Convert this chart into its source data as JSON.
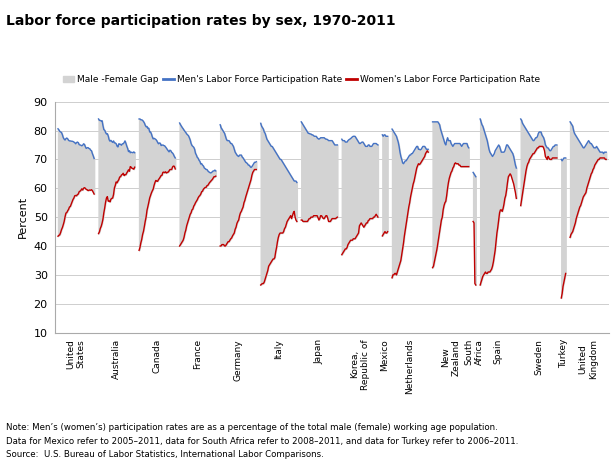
{
  "title": "Labor force participation rates by sex, 1970-2011",
  "ylabel": "Percent",
  "ylim": [
    10,
    90
  ],
  "yticks": [
    10,
    20,
    30,
    40,
    50,
    60,
    70,
    80,
    90
  ],
  "background_color": "#ffffff",
  "gap_color": "#d3d3d3",
  "men_color": "#4472c4",
  "women_color": "#c00000",
  "note_line1": "Note: Men’s (women’s) participation rates are as a percentage of the total male (female) working age population.",
  "note_line2": "Data for Mexico refer to 2005–2011, data for South Africa refer to 2008–2011, and data for Turkey refer to 2006–2011.",
  "note_line3": "Source:  U.S. Bureau of Labor Statistics, International Labor Comparisons.",
  "countries": [
    {
      "name": "United\nStates",
      "men": [
        80.6,
        80.2,
        79.7,
        79.5,
        79.3,
        78.5,
        77.5,
        77.0,
        76.7,
        77.2,
        77.4,
        77.1,
        76.6,
        76.4,
        76.4,
        76.3,
        76.3,
        76.2,
        76.0,
        75.8,
        75.4,
        75.8,
        76.0,
        75.8,
        75.1,
        75.0,
        74.9,
        74.7,
        74.9,
        75.4,
        75.2,
        74.4,
        73.8,
        74.0,
        74.1,
        73.8,
        73.7,
        73.2,
        73.0,
        72.0,
        71.2,
        70.3
      ],
      "women": [
        43.4,
        43.7,
        43.9,
        44.7,
        45.7,
        46.4,
        47.4,
        48.5,
        50.1,
        51.4,
        51.6,
        52.2,
        52.7,
        53.5,
        53.7,
        54.5,
        55.3,
        56.1,
        56.6,
        57.4,
        57.5,
        57.4,
        57.8,
        58.0,
        58.8,
        59.0,
        59.3,
        59.8,
        59.4,
        60.0,
        60.2,
        60.0,
        59.6,
        59.5,
        59.2,
        59.3,
        59.4,
        59.3,
        59.5,
        59.2,
        58.6,
        58.0
      ]
    },
    {
      "name": "Australia",
      "men": [
        84.0,
        83.5,
        83.5,
        83.3,
        83.4,
        81.7,
        80.3,
        80.1,
        79.3,
        78.8,
        78.9,
        78.1,
        76.8,
        76.3,
        76.6,
        76.2,
        75.9,
        76.4,
        75.7,
        75.7,
        75.4,
        74.6,
        74.3,
        75.4,
        75.3,
        75.2,
        74.9,
        75.4,
        75.4,
        75.8,
        76.4,
        75.6,
        74.6,
        73.8,
        72.7,
        73.0,
        72.3,
        72.5,
        72.4,
        72.3,
        72.6,
        72.3
      ],
      "women": [
        44.3,
        44.9,
        46.1,
        46.8,
        47.9,
        49.3,
        51.5,
        53.2,
        55.2,
        56.6,
        57.1,
        55.5,
        55.6,
        55.3,
        56.2,
        56.5,
        56.6,
        57.8,
        60.1,
        61.0,
        62.2,
        61.9,
        62.5,
        63.0,
        63.9,
        64.0,
        64.6,
        64.8,
        65.2,
        64.4,
        64.7,
        64.7,
        65.3,
        65.8,
        66.4,
        65.9,
        67.5,
        67.3,
        66.9,
        66.8,
        66.6,
        67.3
      ]
    },
    {
      "name": "Canada",
      "men": [
        84.0,
        84.0,
        83.7,
        83.7,
        83.5,
        83.1,
        82.6,
        81.8,
        81.3,
        81.4,
        80.7,
        80.8,
        79.5,
        79.5,
        78.8,
        77.8,
        77.1,
        77.3,
        77.1,
        76.9,
        76.5,
        75.9,
        75.4,
        75.7,
        75.6,
        74.8,
        74.9,
        75.0,
        74.8,
        74.7,
        74.3,
        73.9,
        73.4,
        73.0,
        72.6,
        73.2,
        73.0,
        72.4,
        72.2,
        71.7,
        71.0,
        70.5
      ],
      "women": [
        38.5,
        39.5,
        41.1,
        42.3,
        44.0,
        45.1,
        46.8,
        48.6,
        50.1,
        52.4,
        53.7,
        55.1,
        56.6,
        57.5,
        58.4,
        59.1,
        59.7,
        61.0,
        62.0,
        62.7,
        62.5,
        62.4,
        63.0,
        63.4,
        63.9,
        64.4,
        64.5,
        65.5,
        65.6,
        65.4,
        65.7,
        65.3,
        65.5,
        65.6,
        66.0,
        66.5,
        66.5,
        66.5,
        67.4,
        67.7,
        67.6,
        66.7
      ]
    },
    {
      "name": "France",
      "men": [
        82.6,
        82.0,
        81.5,
        81.0,
        80.6,
        80.1,
        79.7,
        79.3,
        78.8,
        78.5,
        78.2,
        77.5,
        76.7,
        75.5,
        74.8,
        74.5,
        74.2,
        73.5,
        72.1,
        71.5,
        70.7,
        70.4,
        69.7,
        69.3,
        68.4,
        68.5,
        68.0,
        67.7,
        67.0,
        66.8,
        66.5,
        66.5,
        66.0,
        65.7,
        65.5,
        65.3,
        65.4,
        65.7,
        66.0,
        66.0,
        66.3,
        66.0
      ],
      "women": [
        40.0,
        40.5,
        41.0,
        41.5,
        42.0,
        43.0,
        44.5,
        45.5,
        47.0,
        48.0,
        49.0,
        50.0,
        51.0,
        51.5,
        52.5,
        52.8,
        53.8,
        54.3,
        55.0,
        55.5,
        56.0,
        56.7,
        57.2,
        57.5,
        58.0,
        58.8,
        59.0,
        59.7,
        60.0,
        60.3,
        60.3,
        60.9,
        61.0,
        61.5,
        62.0,
        62.3,
        62.7,
        63.0,
        63.5,
        64.0,
        64.0,
        64.2
      ]
    },
    {
      "name": "Germany",
      "men": [
        82.0,
        81.0,
        80.5,
        80.0,
        79.5,
        79.0,
        78.0,
        77.0,
        76.5,
        76.5,
        76.5,
        76.0,
        75.5,
        75.5,
        75.0,
        74.5,
        73.5,
        72.5,
        72.0,
        71.5,
        71.2,
        71.0,
        71.5,
        71.5,
        71.5,
        70.8,
        70.5,
        70.0,
        69.5,
        69.0,
        68.8,
        68.5,
        68.0,
        68.0,
        67.5,
        67.2,
        67.5,
        68.0,
        68.5,
        69.0,
        69.0,
        69.2
      ],
      "women": [
        40.0,
        40.0,
        40.5,
        40.5,
        40.5,
        40.0,
        40.0,
        40.5,
        41.0,
        41.5,
        41.5,
        42.0,
        42.5,
        42.8,
        43.5,
        44.0,
        44.5,
        45.8,
        46.5,
        47.8,
        48.5,
        49.0,
        50.5,
        51.5,
        52.0,
        52.8,
        53.5,
        55.0,
        55.8,
        57.0,
        58.0,
        59.0,
        60.0,
        61.0,
        62.0,
        63.0,
        64.5,
        65.5,
        66.0,
        66.5,
        66.5,
        66.5
      ]
    },
    {
      "name": "Italy",
      "men": [
        82.5,
        81.5,
        81.0,
        80.5,
        79.5,
        79.0,
        78.0,
        77.0,
        76.5,
        76.0,
        75.5,
        75.0,
        74.5,
        74.5,
        74.0,
        73.5,
        73.0,
        72.5,
        72.0,
        71.5,
        71.0,
        70.5,
        70.0,
        70.0,
        69.5,
        69.0,
        68.5,
        68.0,
        67.5,
        67.0,
        66.5,
        66.0,
        65.5,
        65.0,
        64.5,
        64.0,
        63.5,
        63.0,
        62.5,
        62.5,
        62.5,
        62.0
      ],
      "women": [
        26.5,
        26.8,
        27.0,
        27.0,
        27.5,
        28.5,
        29.5,
        30.5,
        31.5,
        33.0,
        33.5,
        34.0,
        34.5,
        35.0,
        35.5,
        35.5,
        36.0,
        38.0,
        39.5,
        41.5,
        43.0,
        44.0,
        44.5,
        44.5,
        44.5,
        44.5,
        45.0,
        46.0,
        46.5,
        47.5,
        48.5,
        49.0,
        49.5,
        50.0,
        50.5,
        49.5,
        50.5,
        51.5,
        52.0,
        50.0,
        49.0,
        48.5
      ]
    },
    {
      "name": "Japan",
      "men": [
        83.0,
        82.5,
        82.0,
        81.5,
        81.0,
        80.5,
        80.0,
        79.5,
        79.0,
        79.0,
        78.8,
        78.8,
        78.5,
        78.5,
        78.2,
        78.0,
        78.0,
        78.0,
        77.5,
        77.2,
        77.0,
        77.2,
        77.5,
        77.5,
        77.5,
        77.5,
        77.5,
        77.2,
        77.0,
        77.0,
        76.8,
        76.5,
        76.5,
        76.5,
        76.5,
        76.5,
        76.0,
        75.5,
        75.0,
        75.0,
        75.0,
        75.0
      ],
      "women": [
        49.0,
        49.0,
        48.5,
        48.5,
        48.5,
        48.5,
        48.5,
        48.5,
        49.0,
        49.5,
        49.5,
        50.0,
        50.0,
        50.0,
        50.5,
        50.5,
        50.5,
        50.5,
        50.5,
        49.8,
        49.0,
        49.5,
        50.5,
        50.5,
        50.0,
        49.5,
        49.5,
        50.0,
        50.5,
        50.5,
        49.7,
        48.5,
        48.5,
        48.5,
        49.0,
        49.5,
        49.5,
        49.5,
        49.5,
        49.5,
        49.8,
        50.0
      ]
    },
    {
      "name": "Korea,\nRepublic of",
      "men": [
        77.0,
        76.5,
        76.5,
        76.5,
        76.0,
        76.0,
        76.0,
        76.5,
        76.8,
        77.0,
        77.2,
        77.5,
        77.8,
        78.0,
        78.0,
        78.0,
        77.5,
        77.0,
        76.5,
        76.0,
        75.5,
        75.5,
        75.8,
        76.0,
        76.0,
        75.5,
        75.0,
        74.5,
        74.5,
        74.5,
        75.0,
        75.0,
        74.5,
        74.5,
        74.5,
        75.0,
        75.5,
        75.5,
        75.5,
        75.5,
        75.2,
        75.0
      ],
      "women": [
        37.0,
        37.5,
        38.0,
        38.5,
        39.0,
        39.0,
        39.5,
        40.5,
        41.0,
        41.5,
        42.0,
        42.0,
        42.0,
        42.5,
        42.5,
        42.5,
        43.0,
        43.5,
        44.0,
        44.5,
        47.0,
        47.5,
        48.0,
        47.5,
        47.0,
        46.5,
        47.0,
        47.5,
        48.0,
        48.0,
        48.8,
        49.0,
        49.5,
        49.5,
        49.5,
        49.5,
        50.0,
        50.0,
        50.5,
        51.0,
        50.5,
        50.0
      ]
    },
    {
      "name": "Mexico",
      "men": [
        78.5,
        78.0,
        78.5,
        78.5,
        78.0,
        78.0,
        78.0
      ],
      "women": [
        43.5,
        44.0,
        44.5,
        45.0,
        44.5,
        44.5,
        45.0
      ]
    },
    {
      "name": "Netherlands",
      "men": [
        80.5,
        80.0,
        79.5,
        79.0,
        78.5,
        78.0,
        77.0,
        76.0,
        74.5,
        72.5,
        71.0,
        70.0,
        68.8,
        68.5,
        69.0,
        69.5,
        69.5,
        70.0,
        70.5,
        71.0,
        71.5,
        71.5,
        72.0,
        72.0,
        72.5,
        73.0,
        73.5,
        74.0,
        74.5,
        74.5,
        73.5,
        73.5,
        73.3,
        73.5,
        74.0,
        74.5,
        74.5,
        74.5,
        74.0,
        73.5,
        73.5,
        73.5
      ],
      "women": [
        29.0,
        30.0,
        30.0,
        30.5,
        30.5,
        30.0,
        31.0,
        32.0,
        33.0,
        34.0,
        35.0,
        37.0,
        39.0,
        41.0,
        43.5,
        45.5,
        47.5,
        49.5,
        51.5,
        53.5,
        55.0,
        57.0,
        58.5,
        60.0,
        61.5,
        62.5,
        64.0,
        65.5,
        67.0,
        67.8,
        68.5,
        68.2,
        68.5,
        69.0,
        69.5,
        70.0,
        70.5,
        71.0,
        72.0,
        72.5,
        73.0,
        72.5
      ]
    },
    {
      "name": "New\nZealand",
      "men": [
        83.0,
        83.0,
        83.0,
        83.0,
        83.0,
        83.0,
        83.0,
        82.5,
        82.0,
        80.5,
        79.5,
        78.5,
        77.5,
        76.5,
        75.5,
        75.0,
        76.5,
        77.5,
        76.5,
        76.5,
        76.5,
        75.5,
        75.0,
        74.5,
        75.0,
        75.5,
        75.5,
        75.5,
        75.5,
        75.5,
        75.5,
        75.5,
        75.0,
        74.5,
        75.0,
        75.5,
        75.5,
        75.5,
        75.5,
        75.5,
        74.5,
        74.0
      ],
      "women": [
        32.5,
        33.0,
        34.5,
        36.0,
        37.5,
        39.0,
        41.0,
        43.0,
        45.0,
        47.0,
        49.0,
        50.0,
        52.5,
        54.0,
        55.0,
        55.5,
        57.5,
        60.0,
        62.0,
        63.5,
        64.5,
        65.5,
        66.0,
        67.0,
        67.5,
        68.5,
        68.8,
        68.5,
        68.5,
        68.5,
        68.0,
        68.0,
        67.5,
        67.5,
        67.5,
        67.5,
        67.5,
        67.5,
        67.5,
        67.5,
        67.5,
        67.5
      ]
    },
    {
      "name": "South\nAfrica",
      "men": [
        65.5,
        65.0,
        64.5,
        64.0
      ],
      "women": [
        48.5,
        48.0,
        27.0,
        26.5
      ]
    },
    {
      "name": "Spain",
      "men": [
        84.0,
        83.0,
        82.0,
        81.5,
        80.5,
        79.5,
        78.5,
        77.5,
        76.5,
        75.0,
        73.5,
        72.5,
        72.0,
        71.5,
        71.0,
        71.5,
        72.0,
        73.0,
        73.5,
        74.0,
        74.5,
        75.0,
        74.5,
        73.5,
        72.5,
        72.5,
        72.5,
        72.5,
        73.0,
        74.0,
        75.0,
        75.0,
        74.5,
        74.0,
        73.5,
        73.0,
        72.5,
        72.0,
        71.0,
        69.5,
        68.0,
        67.0
      ],
      "women": [
        26.5,
        27.5,
        28.5,
        29.5,
        30.0,
        30.5,
        31.0,
        30.5,
        30.5,
        31.0,
        31.0,
        31.0,
        31.5,
        32.0,
        33.0,
        34.5,
        36.5,
        38.5,
        41.5,
        44.5,
        46.5,
        49.0,
        51.5,
        52.5,
        52.5,
        52.0,
        53.0,
        54.5,
        56.5,
        57.5,
        59.5,
        62.0,
        64.0,
        64.5,
        65.0,
        64.5,
        63.5,
        62.5,
        61.5,
        60.0,
        58.5,
        56.5
      ]
    },
    {
      "name": "Sweden",
      "men": [
        84.0,
        83.5,
        82.5,
        82.0,
        81.5,
        81.0,
        80.5,
        80.0,
        79.5,
        79.0,
        78.5,
        78.0,
        77.5,
        77.0,
        76.5,
        76.5,
        77.0,
        77.5,
        77.5,
        78.0,
        79.0,
        79.5,
        79.5,
        79.5,
        78.5,
        78.0,
        77.5,
        76.5,
        75.0,
        74.5,
        74.0,
        74.0,
        73.5,
        73.0,
        73.0,
        73.5,
        74.0,
        74.5,
        74.5,
        75.0,
        75.0,
        75.0
      ],
      "women": [
        54.0,
        56.0,
        58.0,
        60.0,
        62.0,
        64.0,
        66.0,
        67.5,
        68.5,
        69.0,
        70.0,
        70.5,
        71.0,
        71.5,
        72.0,
        72.0,
        72.5,
        73.0,
        73.5,
        74.0,
        74.0,
        74.5,
        74.5,
        74.5,
        74.5,
        74.5,
        74.0,
        73.0,
        71.0,
        70.5,
        70.0,
        71.0,
        70.5,
        70.0,
        70.0,
        70.0,
        70.5,
        70.5,
        70.5,
        70.5,
        70.5,
        70.5
      ]
    },
    {
      "name": "Turkey",
      "men": [
        70.0,
        69.5,
        70.0,
        70.5,
        70.5,
        70.5
      ],
      "women": [
        22.0,
        23.5,
        26.0,
        27.5,
        29.0,
        30.5
      ]
    },
    {
      "name": "United\nKingdom",
      "men": [
        83.0,
        82.5,
        82.0,
        81.5,
        80.0,
        79.0,
        78.5,
        78.0,
        77.5,
        77.0,
        76.5,
        76.0,
        75.5,
        75.0,
        74.5,
        74.0,
        74.0,
        74.5,
        75.0,
        75.5,
        76.0,
        76.5,
        76.0,
        75.5,
        75.5,
        75.0,
        74.5,
        74.0,
        74.0,
        74.0,
        74.5,
        74.0,
        73.5,
        73.0,
        72.5,
        72.5,
        72.5,
        72.5,
        72.0,
        72.5,
        72.5,
        72.5
      ],
      "women": [
        43.0,
        44.0,
        44.5,
        45.0,
        46.0,
        47.0,
        48.0,
        49.5,
        50.5,
        51.5,
        52.5,
        53.5,
        54.0,
        55.0,
        56.0,
        57.0,
        57.5,
        58.0,
        58.5,
        60.0,
        61.0,
        62.0,
        63.0,
        64.0,
        65.0,
        65.5,
        66.5,
        67.0,
        68.0,
        68.5,
        69.0,
        69.5,
        70.0,
        70.0,
        70.5,
        70.5,
        70.5,
        70.5,
        70.5,
        70.5,
        70.0,
        70.0
      ]
    }
  ]
}
